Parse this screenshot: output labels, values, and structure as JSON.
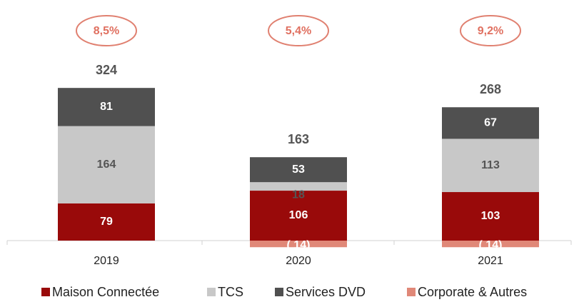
{
  "chart_data": {
    "type": "stacked-bar",
    "categories": [
      "2019",
      "2020",
      "2021"
    ],
    "series": [
      {
        "name": "Maison Connectée",
        "color": "#990a0a",
        "values": [
          79,
          106,
          103
        ]
      },
      {
        "name": "TCS",
        "color": "#c8c8c8",
        "values": [
          164,
          18,
          113
        ]
      },
      {
        "name": "Services DVD",
        "color": "#505050",
        "values": [
          81,
          53,
          67
        ]
      },
      {
        "name": "Corporate & Autres",
        "color": "#e08878",
        "values": [
          null,
          -14,
          -14
        ],
        "value_labels": [
          null,
          "( 14)",
          "( 14)"
        ]
      }
    ],
    "totals": [
      324,
      163,
      268
    ],
    "margins": [
      "8,5%",
      "5,4%",
      "9,2%"
    ]
  }
}
